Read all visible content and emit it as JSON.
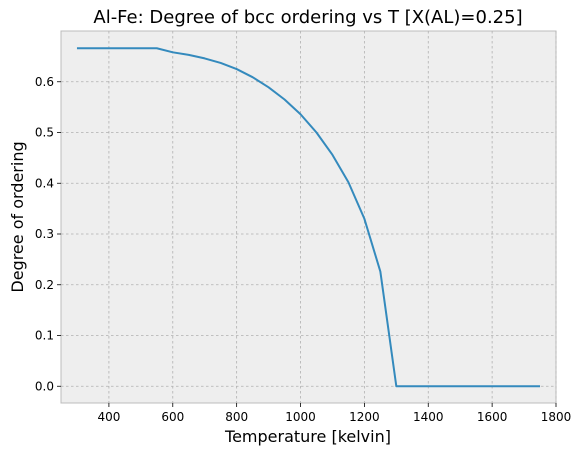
{
  "chart_data": {
    "type": "line",
    "title": "Al-Fe: Degree of bcc ordering vs T [X(AL)=0.25]",
    "xlabel": "Temperature [kelvin]",
    "ylabel": "Degree of ordering",
    "xlim": [
      250,
      1800
    ],
    "ylim": [
      -0.033,
      0.7
    ],
    "xticks": [
      400,
      600,
      800,
      1000,
      1200,
      1400,
      1600,
      1800
    ],
    "yticks": [
      0.0,
      0.1,
      0.2,
      0.3,
      0.4,
      0.5,
      0.6
    ],
    "ytick_labels": [
      "0.0",
      "0.1",
      "0.2",
      "0.3",
      "0.4",
      "0.5",
      "0.6"
    ],
    "grid": true,
    "series": [
      {
        "color": "#348abd",
        "x": [
          300,
          350,
          400,
          450,
          500,
          550,
          600,
          650,
          700,
          750,
          800,
          850,
          900,
          950,
          1000,
          1050,
          1100,
          1150,
          1200,
          1250,
          1300,
          1350,
          1400,
          1450,
          1500,
          1550,
          1600,
          1650,
          1700,
          1750
        ],
        "y": [
          0.666,
          0.666,
          0.666,
          0.666,
          0.666,
          0.666,
          0.658,
          0.653,
          0.646,
          0.637,
          0.625,
          0.609,
          0.589,
          0.565,
          0.536,
          0.5,
          0.456,
          0.402,
          0.33,
          0.226,
          0.0,
          0.0,
          0.0,
          0.0,
          0.0,
          0.0,
          0.0,
          0.0,
          0.0,
          0.0
        ]
      }
    ]
  }
}
